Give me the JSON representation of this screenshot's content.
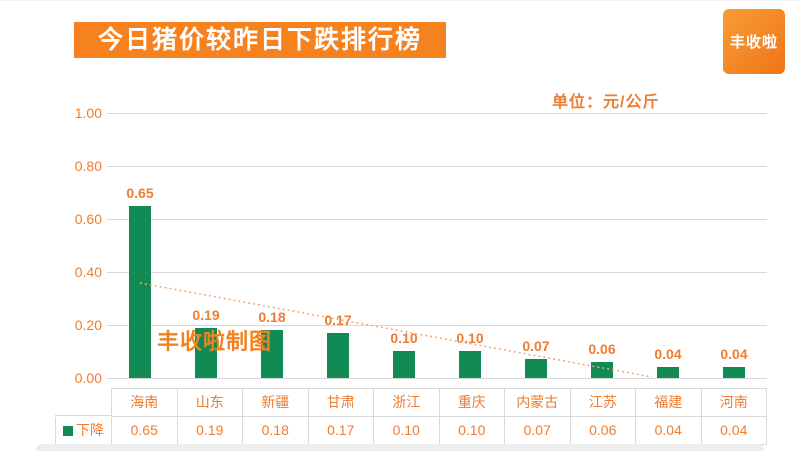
{
  "header": {
    "title": "今日猪价较昨日下跌排行榜",
    "logo_text": "丰收啦"
  },
  "watermark": "丰收啦制图",
  "chart_data": {
    "type": "bar",
    "title": "今日猪价较昨日下跌排行榜",
    "unit_label": "单位：元/公斤",
    "categories": [
      "海南",
      "山东",
      "新疆",
      "甘肃",
      "浙江",
      "重庆",
      "内蒙古",
      "江苏",
      "福建",
      "河南"
    ],
    "series": [
      {
        "name": "下降",
        "values": [
          0.65,
          0.19,
          0.18,
          0.17,
          0.1,
          0.1,
          0.07,
          0.06,
          0.04,
          0.04
        ]
      }
    ],
    "value_labels": [
      "0.65",
      "0.19",
      "0.18",
      "0.17",
      "0.10",
      "0.10",
      "0.07",
      "0.06",
      "0.04",
      "0.04"
    ],
    "yticks": [
      "1.00",
      "0.80",
      "0.60",
      "0.40",
      "0.20",
      "0.00"
    ],
    "ylim": [
      0,
      1.0
    ],
    "grid": true,
    "trendline": true,
    "legend": {
      "label": "下降",
      "position": "bottom-table"
    }
  },
  "colors": {
    "accent_orange": "#f5821f",
    "text_orange": "#ed7d31",
    "bar_green": "#128a54",
    "gridline": "#d9d9d9",
    "trendline": "#f4a776"
  }
}
